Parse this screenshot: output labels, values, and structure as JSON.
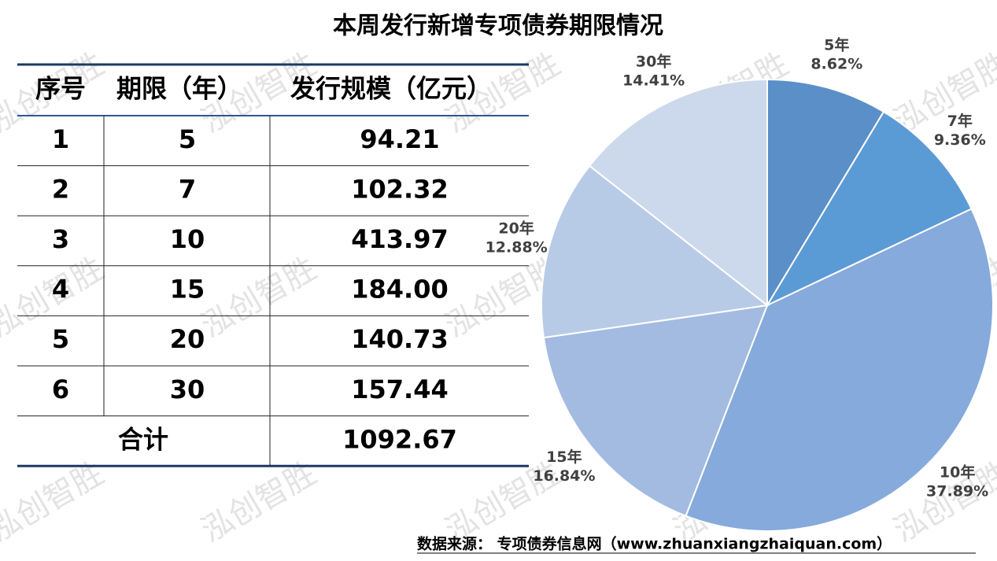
{
  "title": "本周发行新增专项债券期限情况",
  "watermark": "泓创智胜",
  "table": {
    "header": [
      "序号",
      "期限（年）",
      "发行规模（亿元）"
    ],
    "rows": [
      [
        "1",
        "5",
        "94.21"
      ],
      [
        "2",
        "7",
        "102.32"
      ],
      [
        "3",
        "10",
        "413.97"
      ],
      [
        "4",
        "15",
        "184.00"
      ],
      [
        "5",
        "20",
        "140.73"
      ],
      [
        "6",
        "30",
        "157.44"
      ]
    ],
    "total": [
      "合计",
      "1092.67"
    ]
  },
  "chart_data": {
    "type": "pie",
    "categories": [
      "5年",
      "7年",
      "10年",
      "15年",
      "20年",
      "30年"
    ],
    "values": [
      8.62,
      9.36,
      37.89,
      16.84,
      12.88,
      14.41
    ],
    "value_labels": [
      "8.62%",
      "9.36%",
      "37.89%",
      "16.84%",
      "12.88%",
      "14.41%"
    ],
    "colors": [
      "#5a8fc8",
      "#5b9bd5",
      "#85aadb",
      "#a3bbe0",
      "#b8cbe6",
      "#ccd9ec"
    ]
  },
  "source": "数据来源：   专项债券信息网（www.zhuanxiangzhaiquan.com）"
}
